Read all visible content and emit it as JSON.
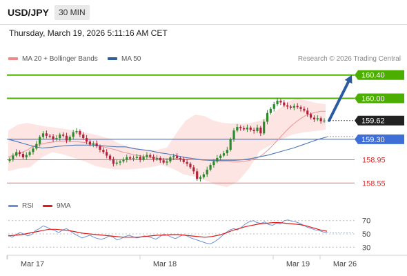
{
  "header": {
    "symbol": "USD/JPY",
    "timeframe": "30 MIN",
    "timestamp": "Thursday, March 19, 2026 5:11:16 AM CET"
  },
  "legend": {
    "ma20_label": "MA 20 + Bollinger Bands",
    "ma50_label": "MA 50",
    "credit": "Research © 2026 Trading Central"
  },
  "rsi_legend": {
    "rsi_label": "RSI",
    "ma_label": "9MA"
  },
  "colors": {
    "resistance": "#4caf00",
    "pivot": "#3f6fd6",
    "support": "#e57373",
    "bollinger_fill": "#fde2e0",
    "ma20": "#e99494",
    "ma50": "#4a78b8",
    "candle_up": "#2c8a2c",
    "candle_down": "#b3213a",
    "arrow": "#2c5aa0",
    "last_price_bg": "#222222",
    "rsi_line": "#6b8fd6",
    "rsi_ma": "#dd1b1b"
  },
  "chart_data": [
    {
      "type": "candlestick",
      "instrument": "USD/JPY",
      "timeframe": "30 MIN",
      "x_ticks": [
        "Mar 17",
        "Mar 18",
        "Mar 19",
        "Mar 26"
      ],
      "y_range": [
        158.4,
        160.55
      ],
      "levels": [
        {
          "value": 160.4,
          "label": "160.40",
          "role": "resistance",
          "style": "badge"
        },
        {
          "value": 160.0,
          "label": "160.00",
          "role": "resistance",
          "style": "badge"
        },
        {
          "value": 159.62,
          "label": "159.62",
          "role": "last",
          "style": "last"
        },
        {
          "value": 159.3,
          "label": "159.30",
          "role": "pivot",
          "style": "badge"
        },
        {
          "value": 158.95,
          "label": "158.95",
          "role": "support",
          "style": "text"
        },
        {
          "value": 158.55,
          "label": "158.55",
          "role": "support",
          "style": "text"
        }
      ],
      "close_series": [
        158.96,
        159.02,
        159.08,
        159.05,
        158.99,
        159.03,
        159.08,
        159.14,
        159.22,
        159.34,
        159.4,
        159.36,
        159.35,
        159.3,
        159.32,
        159.38,
        159.36,
        159.28,
        159.34,
        159.42,
        159.44,
        159.38,
        159.32,
        159.26,
        159.21,
        159.23,
        159.18,
        159.12,
        159.08,
        159.02,
        158.96,
        158.88,
        158.9,
        158.92,
        158.95,
        158.99,
        158.97,
        158.98,
        159.0,
        158.95,
        159.0,
        159.03,
        159.0,
        158.96,
        158.98,
        158.94,
        158.9,
        158.92,
        158.99,
        159.01,
        158.98,
        158.96,
        158.91,
        158.88,
        158.82,
        158.75,
        158.62,
        158.65,
        158.7,
        158.78,
        158.86,
        158.92,
        158.98,
        159.02,
        159.06,
        159.12,
        159.3,
        159.45,
        159.51,
        159.49,
        159.47,
        159.5,
        159.46,
        159.44,
        159.5,
        159.4,
        159.6,
        159.75,
        159.82,
        159.9,
        159.96,
        159.93,
        159.88,
        159.86,
        159.84,
        159.87,
        159.85,
        159.82,
        159.79,
        159.73,
        159.67,
        159.64,
        159.66,
        159.61,
        159.62
      ],
      "ma20": [
        159.0,
        159.02,
        159.05,
        159.08,
        159.12,
        159.18,
        159.2,
        159.22,
        159.24,
        159.25,
        159.26,
        159.27,
        159.27,
        159.26,
        159.26,
        159.25,
        159.24,
        159.22,
        159.2,
        159.18,
        159.16,
        159.14,
        159.12,
        159.09,
        159.07,
        159.05,
        159.03,
        159.02,
        159.0,
        158.99,
        158.98,
        158.97,
        158.97,
        158.97,
        158.97,
        158.97,
        158.96,
        158.96,
        158.95,
        158.95,
        158.94,
        158.94,
        158.93,
        158.92,
        158.92,
        158.92,
        158.91,
        158.91,
        158.92,
        158.93,
        158.95,
        158.98,
        159.03,
        159.1,
        159.18,
        159.27,
        159.36,
        159.45,
        159.53,
        159.6,
        159.66,
        159.71,
        159.74,
        159.76,
        159.78,
        159.78
      ],
      "ma50": [
        159.3,
        159.26,
        159.22,
        159.18,
        159.15,
        159.16,
        159.18,
        159.19,
        159.2,
        159.2,
        159.2,
        159.19,
        159.18,
        159.17,
        159.17,
        159.14,
        159.12,
        159.1,
        159.07,
        159.05,
        159.02,
        158.99,
        158.97,
        158.95,
        158.94,
        158.94,
        158.94,
        158.94,
        158.95,
        158.97,
        159.0,
        159.03,
        159.07,
        159.11,
        159.15,
        159.2,
        159.25,
        159.3,
        159.34
      ],
      "bb_upper": [
        159.45,
        159.55,
        159.58,
        159.55,
        159.52,
        159.5,
        159.48,
        159.45,
        159.42,
        159.39,
        159.35,
        159.3,
        159.22,
        159.17,
        159.14,
        159.12,
        159.12,
        159.16,
        159.4,
        159.62,
        159.72,
        159.7,
        159.62,
        159.58,
        159.57,
        159.57,
        159.58,
        159.62,
        159.7,
        159.82,
        159.95,
        160.0,
        159.96,
        159.92,
        159.9
      ],
      "bb_lower": [
        158.75,
        158.8,
        158.82,
        158.98,
        159.08,
        159.04,
        158.98,
        158.92,
        158.84,
        158.8,
        158.78,
        158.78,
        158.8,
        158.82,
        158.86,
        158.8,
        158.7,
        158.66,
        158.6,
        158.52,
        158.48,
        158.58,
        158.8,
        159.1,
        159.2,
        159.3,
        159.38,
        159.42,
        159.44,
        159.46
      ],
      "projection_arrow": {
        "from": 159.62,
        "to": 160.4
      }
    },
    {
      "type": "line",
      "name": "RSI panel",
      "y_ticks": [
        70,
        50,
        30
      ],
      "y_range": [
        22,
        78
      ],
      "rsi": [
        48,
        45,
        49,
        52,
        50,
        47,
        49,
        55,
        58,
        62,
        60,
        57,
        55,
        52,
        56,
        58,
        54,
        50,
        47,
        44,
        46,
        48,
        45,
        43,
        42,
        44,
        47,
        45,
        41,
        43,
        46,
        48,
        46,
        44,
        45,
        47,
        46,
        44,
        42,
        46,
        50,
        48,
        45,
        43,
        46,
        49,
        47,
        44,
        42,
        40,
        38,
        36,
        35,
        38,
        42,
        47,
        52,
        56,
        58,
        56,
        60,
        65,
        68,
        70,
        67,
        66,
        68,
        64,
        63,
        66,
        65,
        70,
        71,
        69,
        68,
        66,
        63,
        60,
        58,
        56,
        55,
        53,
        52
      ],
      "rsi_ma": [
        47,
        48,
        49,
        51,
        53,
        55,
        57,
        57,
        56,
        55,
        53,
        51,
        50,
        49,
        48,
        47,
        46,
        45,
        45,
        45,
        46,
        47,
        48,
        48,
        49,
        49,
        48,
        47,
        46,
        45,
        46,
        48,
        51,
        55,
        58,
        61,
        63,
        65,
        66,
        67,
        67,
        66,
        65,
        64,
        62,
        59,
        56,
        54
      ]
    }
  ]
}
